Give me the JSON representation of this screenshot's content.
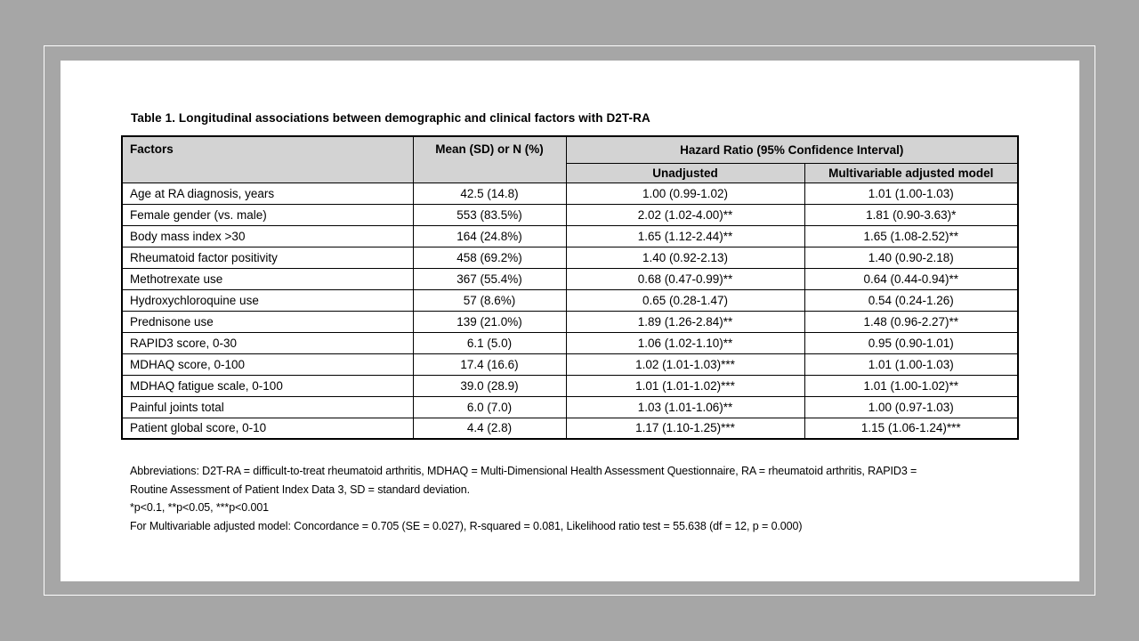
{
  "page": {
    "background_color": "#a6a6a6",
    "slide_background_color": "#ffffff",
    "frame_border_color": "#fdfdfd",
    "table_header_fill": "#d3d3d3"
  },
  "title": "Table 1. Longitudinal associations between demographic and clinical factors with D2T-RA",
  "table": {
    "header": {
      "factors": "Factors",
      "mean": "Mean (SD) or N (%)",
      "hazard_ratio": "Hazard Ratio (95% Confidence Interval)",
      "unadjusted": "Unadjusted",
      "multivariable": "Multivariable adjusted model"
    },
    "rows": [
      [
        "Age at RA diagnosis, years",
        "42.5 (14.8)",
        "1.00 (0.99-1.02)",
        "1.01 (1.00-1.03)"
      ],
      [
        "Female gender (vs. male)",
        "553 (83.5%)",
        "2.02 (1.02-4.00)**",
        "1.81 (0.90-3.63)*"
      ],
      [
        "Body mass index >30",
        "164 (24.8%)",
        "1.65 (1.12-2.44)**",
        "1.65 (1.08-2.52)**"
      ],
      [
        "Rheumatoid factor positivity",
        "458 (69.2%)",
        "1.40 (0.92-2.13)",
        "1.40 (0.90-2.18)"
      ],
      [
        "Methotrexate use",
        "367 (55.4%)",
        "0.68 (0.47-0.99)**",
        "0.64 (0.44-0.94)**"
      ],
      [
        "Hydroxychloroquine use",
        "57 (8.6%)",
        "0.65 (0.28-1.47)",
        "0.54 (0.24-1.26)"
      ],
      [
        "Prednisone use",
        "139 (21.0%)",
        "1.89 (1.26-2.84)**",
        "1.48 (0.96-2.27)**"
      ],
      [
        "RAPID3 score, 0-30",
        "6.1 (5.0)",
        "1.06 (1.02-1.10)**",
        "0.95 (0.90-1.01)"
      ],
      [
        "MDHAQ score, 0-100",
        "17.4 (16.6)",
        "1.02 (1.01-1.03)***",
        "1.01 (1.00-1.03)"
      ],
      [
        "MDHAQ fatigue scale, 0-100",
        "39.0 (28.9)",
        "1.01 (1.01-1.02)***",
        "1.01 (1.00-1.02)**"
      ],
      [
        "Painful joints total",
        "6.0 (7.0)",
        "1.03 (1.01-1.06)**",
        "1.00 (0.97-1.03)"
      ],
      [
        "Patient global score, 0-10",
        "4.4 (2.8)",
        "1.17 (1.10-1.25)***",
        "1.15 (1.06-1.24)***"
      ]
    ]
  },
  "footnotes": {
    "lines": [
      "Abbreviations: D2T-RA = difficult-to-treat rheumatoid arthritis, MDHAQ = Multi-Dimensional Health Assessment Questionnaire, RA = rheumatoid arthritis, RAPID3 =",
      "Routine Assessment of Patient Index Data 3, SD = standard deviation.",
      "*p<0.1, **p<0.05, ***p<0.001",
      "For Multivariable adjusted model: Concordance = 0.705 (SE = 0.027), R-squared = 0.081, Likelihood ratio test = 55.638 (df = 12, p = 0.000)"
    ]
  }
}
